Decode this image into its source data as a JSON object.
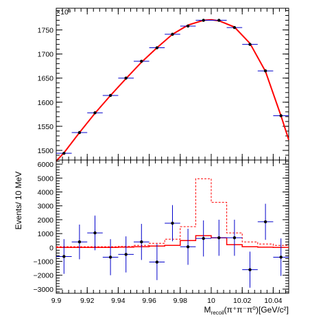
{
  "chart_data": [
    {
      "type": "scatter",
      "panel": "top",
      "exponent_label": "×10³",
      "y_scale_multiplier": 1000,
      "xlim": [
        9.9,
        10.05
      ],
      "ylim": [
        1480,
        1795
      ],
      "y_ticks": [
        "1500",
        "1550",
        "1600",
        "1650",
        "1700",
        "1750"
      ],
      "x_bin_width": 0.01,
      "series": [
        {
          "style": "points-with-errors",
          "color": "#000000",
          "error_color": "#0000cc",
          "x": [
            9.905,
            9.915,
            9.925,
            9.935,
            9.945,
            9.955,
            9.965,
            9.975,
            9.985,
            9.995,
            10.005,
            10.015,
            10.025,
            10.035,
            10.045
          ],
          "y": [
            1494,
            1537,
            1578,
            1614,
            1650,
            1685,
            1713,
            1741,
            1758,
            1770,
            1770,
            1755,
            1720,
            1665,
            1572
          ]
        },
        {
          "style": "fit-curve",
          "color": "#ff0000",
          "x": [
            9.9,
            9.905,
            9.915,
            9.925,
            9.935,
            9.945,
            9.955,
            9.965,
            9.975,
            9.985,
            9.995,
            10.0,
            10.005,
            10.015,
            10.025,
            10.035,
            10.045,
            10.05
          ],
          "y": [
            1478,
            1495,
            1537,
            1577,
            1614,
            1649,
            1683,
            1713,
            1741,
            1760,
            1770,
            1771,
            1769,
            1756,
            1722,
            1664,
            1572,
            1522
          ]
        }
      ]
    },
    {
      "type": "scatter",
      "panel": "bottom",
      "xlim": [
        9.9,
        10.05
      ],
      "ylim": [
        -3300,
        6300
      ],
      "y_ticks": [
        "−3000",
        "−2000",
        "−1000",
        "0",
        "1000",
        "2000",
        "3000",
        "4000",
        "5000",
        "6000"
      ],
      "x_ticks": [
        "9.9",
        "9.92",
        "9.94",
        "9.96",
        "9.98",
        "10",
        "10.02",
        "10.04"
      ],
      "ylabel": "Events/ 10 MeV",
      "xlabel": {
        "main": "M",
        "subscript": "recoil",
        "rest": "(π⁺π⁻π⁰)[GeV/c²]"
      },
      "x_bin_width": 0.01,
      "series": [
        {
          "style": "points-with-errors",
          "color": "#000000",
          "error_color": "#0000cc",
          "x": [
            9.905,
            9.915,
            9.925,
            9.935,
            9.945,
            9.955,
            9.965,
            9.975,
            9.985,
            9.995,
            10.005,
            10.015,
            10.025,
            10.035,
            10.045
          ],
          "y": [
            -650,
            400,
            1050,
            -700,
            -500,
            400,
            -1050,
            1750,
            50,
            650,
            700,
            700,
            -1600,
            1850,
            -700
          ],
          "yerr": [
            1250,
            1250,
            1250,
            1300,
            1300,
            1300,
            1300,
            1300,
            1300,
            1300,
            1300,
            1300,
            1300,
            1300,
            1350
          ]
        },
        {
          "style": "step-solid",
          "color": "#ff0000",
          "edges": [
            9.9,
            9.91,
            9.92,
            9.93,
            9.94,
            9.95,
            9.96,
            9.97,
            9.98,
            9.99,
            10.0,
            10.01,
            10.02,
            10.03,
            10.04,
            10.05
          ],
          "values": [
            0,
            0,
            0,
            0,
            20,
            50,
            100,
            150,
            500,
            850,
            700,
            200,
            50,
            20,
            0
          ]
        },
        {
          "style": "step-dashed",
          "color": "#ff0000",
          "edges": [
            9.9,
            9.91,
            9.92,
            9.93,
            9.94,
            9.95,
            9.96,
            9.97,
            9.98,
            9.99,
            10.0,
            10.01,
            10.02,
            10.03,
            10.04,
            10.05
          ],
          "values": [
            50,
            50,
            50,
            50,
            80,
            150,
            300,
            600,
            1500,
            4950,
            3250,
            1050,
            400,
            250,
            150
          ]
        }
      ]
    }
  ]
}
